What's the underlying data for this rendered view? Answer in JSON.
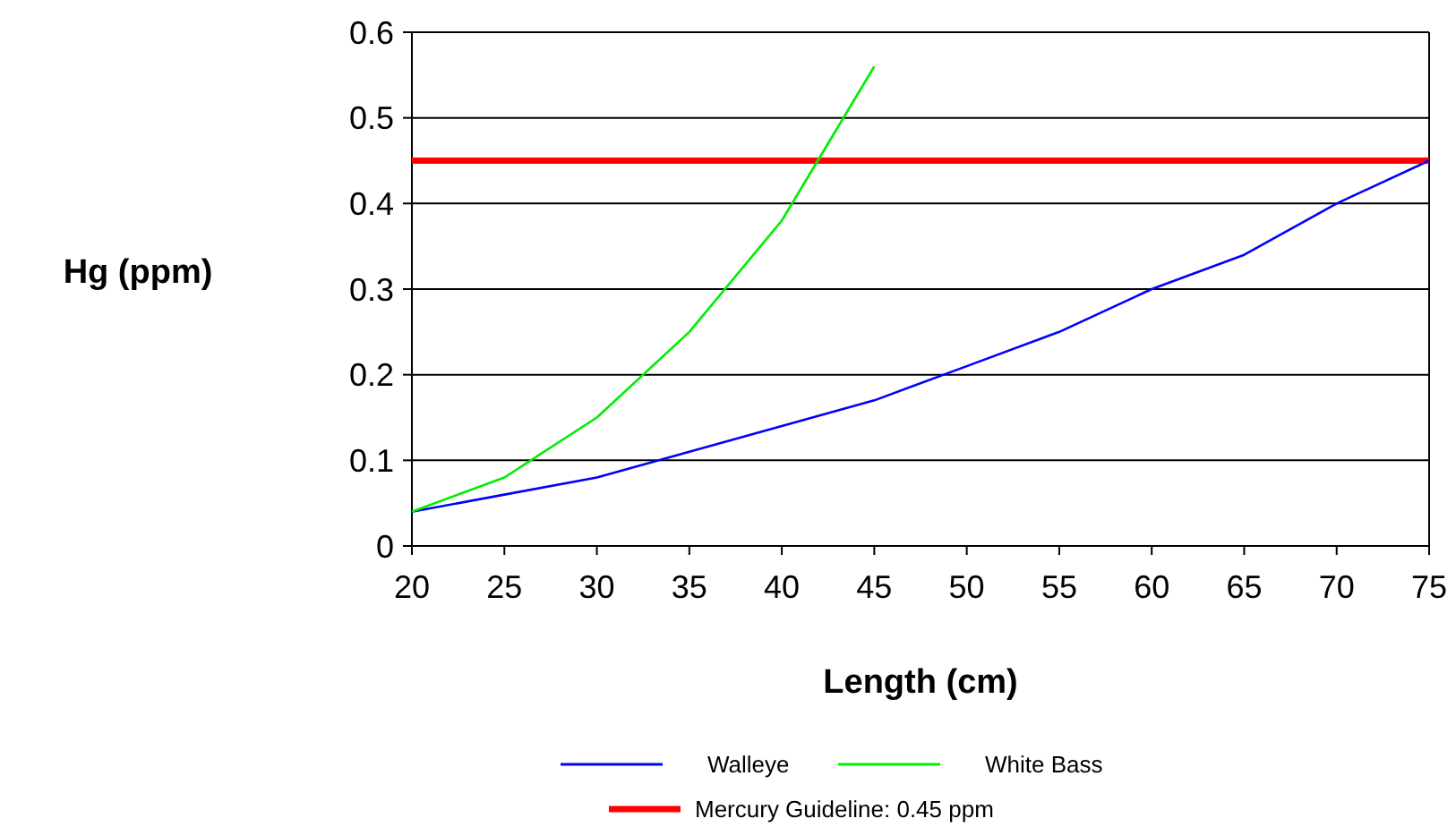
{
  "chart_data": {
    "type": "line",
    "xlabel": "Length (cm)",
    "ylabel": "Hg (ppm)",
    "x": [
      20,
      25,
      30,
      35,
      40,
      45,
      50,
      55,
      60,
      65,
      70,
      75
    ],
    "series": [
      {
        "name": "Walleye",
        "color": "#0000ff",
        "values": [
          0.04,
          0.06,
          0.08,
          0.11,
          0.14,
          0.17,
          0.21,
          0.25,
          0.3,
          0.34,
          0.4,
          0.45
        ]
      },
      {
        "name": "White Bass",
        "color": "#00ee00",
        "x": [
          20,
          25,
          30,
          35,
          40,
          45
        ],
        "values": [
          0.04,
          0.08,
          0.15,
          0.25,
          0.38,
          0.56
        ]
      }
    ],
    "ref_lines": [
      {
        "axis": "y",
        "value": 0.45,
        "label": "Mercury Guideline: 0.45 ppm",
        "color": "#ff0000"
      }
    ],
    "xlim": [
      20,
      75
    ],
    "xticks": [
      20,
      25,
      30,
      35,
      40,
      45,
      50,
      55,
      60,
      65,
      70,
      75
    ],
    "ylim": [
      0,
      0.6
    ],
    "yticks": [
      0,
      0.1,
      0.2,
      0.3,
      0.4,
      0.5,
      0.6
    ],
    "grid": "y",
    "legend": "bottom",
    "marker": "none",
    "line_style": "solid"
  }
}
